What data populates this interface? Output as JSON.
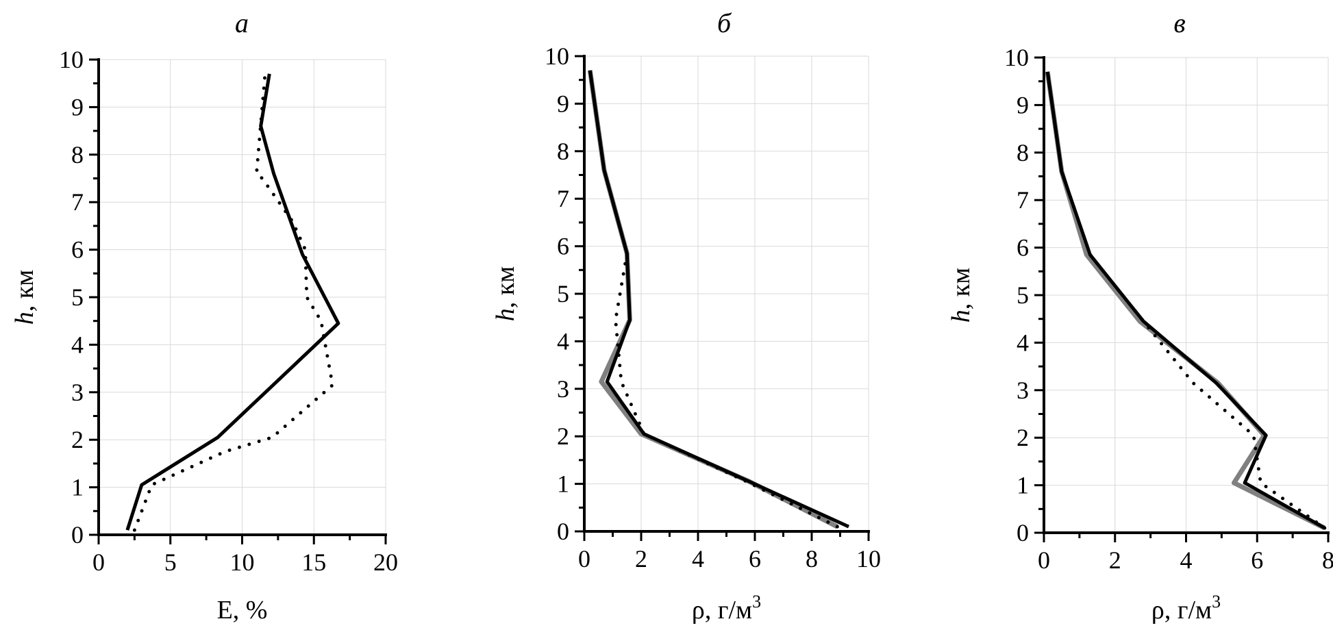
{
  "chart_data": [
    {
      "type": "line",
      "title": "а",
      "xlabel": "E, %",
      "ylabel_italic": "h",
      "ylabel_rest": ", км",
      "xlim": [
        0,
        20
      ],
      "ylim": [
        0,
        10
      ],
      "xticks": [
        0,
        5,
        10,
        15,
        20
      ],
      "yticks": [
        0,
        1,
        2,
        3,
        4,
        5,
        6,
        7,
        8,
        9,
        10
      ],
      "grid": true,
      "series": [
        {
          "style": "solid",
          "color": "#000000",
          "x": [
            2.0,
            3.0,
            8.3,
            16.7,
            14.2,
            12.2,
            11.3,
            11.9
          ],
          "y": [
            0.1,
            1.05,
            2.05,
            4.45,
            5.9,
            7.6,
            8.6,
            9.7
          ]
        },
        {
          "style": "dotted",
          "color": "#000000",
          "x": [
            2.5,
            3.7,
            8.8,
            12.1,
            16.3,
            15.5,
            14.5,
            14.4,
            13.5,
            11.4,
            11.0,
            11.6
          ],
          "y": [
            0.1,
            1.05,
            1.75,
            2.05,
            3.15,
            4.5,
            5.0,
            6.0,
            6.6,
            7.5,
            7.6,
            9.7
          ]
        }
      ]
    },
    {
      "type": "line",
      "title": "б",
      "xlabel": "ρ, г/м",
      "xlabel_sup": "3",
      "ylabel_italic": "h",
      "ylabel_rest": ", км",
      "xlim": [
        0,
        10
      ],
      "ylim": [
        0,
        10
      ],
      "xticks": [
        0,
        2,
        4,
        6,
        8,
        10
      ],
      "yticks": [
        0,
        1,
        2,
        3,
        4,
        5,
        6,
        7,
        8,
        9,
        10
      ],
      "grid": true,
      "series": [
        {
          "style": "solid",
          "color": "#808080",
          "x": [
            8.9,
            5.8,
            2.0,
            0.6,
            1.6,
            1.5,
            0.7,
            0.2
          ],
          "y": [
            0.1,
            1.05,
            2.05,
            3.15,
            4.45,
            5.85,
            7.6,
            9.7
          ]
        },
        {
          "style": "dotted",
          "color": "#000000",
          "x": [
            8.9,
            5.7,
            2.1,
            1.3,
            1.1,
            1.5,
            0.7,
            0.2
          ],
          "y": [
            0.1,
            1.05,
            2.05,
            3.15,
            4.45,
            5.85,
            7.6,
            9.7
          ]
        },
        {
          "style": "solid",
          "color": "#000000",
          "x": [
            9.3,
            5.8,
            2.1,
            0.8,
            1.6,
            1.5,
            0.7,
            0.2
          ],
          "y": [
            0.1,
            1.05,
            2.05,
            3.15,
            4.45,
            5.85,
            7.6,
            9.7
          ]
        }
      ]
    },
    {
      "type": "line",
      "title": "в",
      "xlabel": "ρ, г/м",
      "xlabel_sup": "3",
      "ylabel_italic": "h",
      "ylabel_rest": ", км",
      "xlim": [
        0,
        8
      ],
      "ylim": [
        0,
        10
      ],
      "xticks": [
        0,
        2,
        4,
        6,
        8
      ],
      "yticks": [
        0,
        1,
        2,
        3,
        4,
        5,
        6,
        7,
        8,
        9,
        10
      ],
      "grid": true,
      "series": [
        {
          "style": "solid",
          "color": "#808080",
          "x": [
            7.9,
            5.35,
            6.2,
            4.9,
            2.7,
            1.2,
            0.5,
            0.1
          ],
          "y": [
            0.1,
            1.05,
            2.05,
            3.15,
            4.45,
            5.85,
            7.6,
            9.7
          ]
        },
        {
          "style": "dotted",
          "color": "#000000",
          "x": [
            7.9,
            6.1,
            5.9,
            4.2,
            2.8,
            1.3,
            0.5,
            0.1
          ],
          "y": [
            0.1,
            1.05,
            2.05,
            3.15,
            4.45,
            5.85,
            7.6,
            9.7
          ]
        },
        {
          "style": "solid",
          "color": "#000000",
          "x": [
            7.9,
            5.65,
            6.25,
            4.85,
            2.8,
            1.3,
            0.5,
            0.1
          ],
          "y": [
            0.1,
            1.05,
            2.05,
            3.15,
            4.45,
            5.85,
            7.6,
            9.7
          ]
        }
      ]
    }
  ]
}
